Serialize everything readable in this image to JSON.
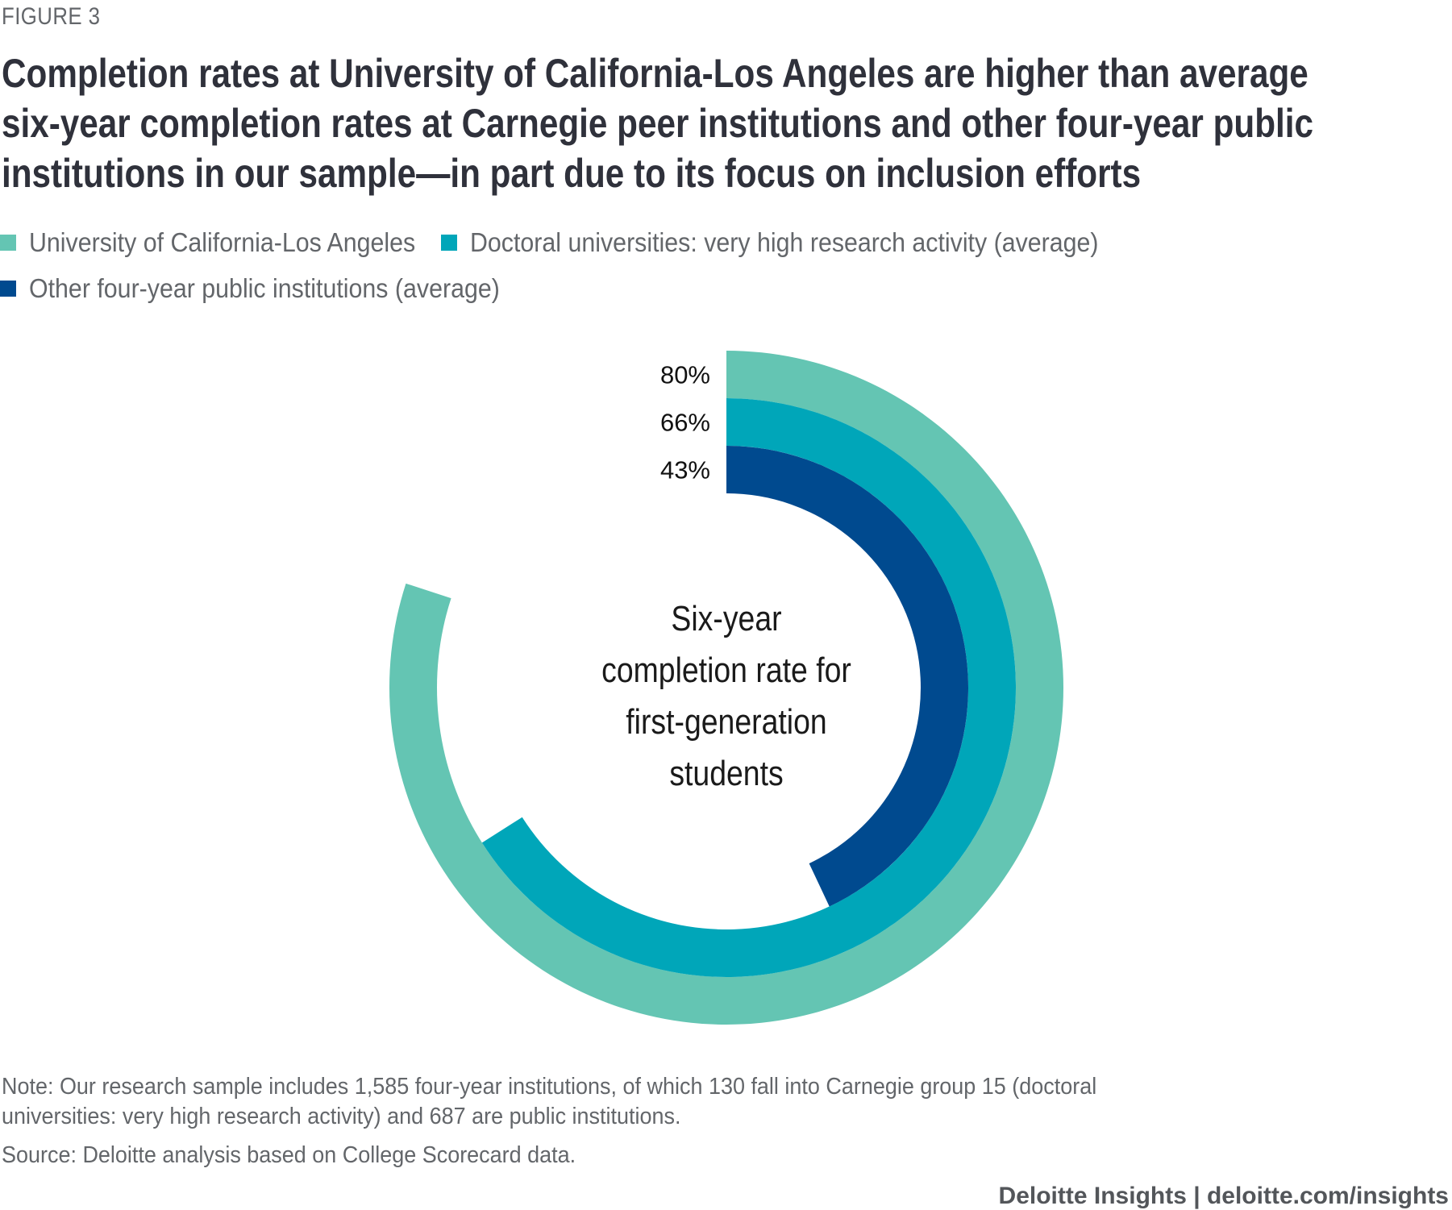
{
  "figure_label": "FIGURE 3",
  "title_lines": [
    "Completion rates at University of California-Los Angeles are higher than average",
    "six-year completion rates at Carnegie peer institutions and other four-year public",
    "institutions in our sample—in part due to its focus on inclusion efforts"
  ],
  "legend": [
    {
      "label": "University of California-Los Angeles",
      "color": "#64c5b3"
    },
    {
      "label": "Doctoral universities: very high research activity (average)",
      "color": "#00a6b9"
    },
    {
      "label": "Other four-year public institutions (average)",
      "color": "#004a8f"
    }
  ],
  "chart_data": {
    "type": "radial-bar",
    "title": "Completion rates at University of California-Los Angeles are higher than average six-year completion rates at Carnegie peer institutions and other four-year public institutions in our sample—in part due to its focus on inclusion efforts",
    "center_label": [
      "Six-year",
      "completion rate for",
      "first-generation",
      "students"
    ],
    "max_value": 100,
    "series": [
      {
        "name": "University of California-Los Angeles",
        "value": 80,
        "label": "80%",
        "color": "#64c5b3"
      },
      {
        "name": "Doctoral universities: very high research activity (average)",
        "value": 66,
        "label": "66%",
        "color": "#00a6b9"
      },
      {
        "name": "Other four-year public institutions (average)",
        "value": 43,
        "label": "43%",
        "color": "#004a8f"
      }
    ],
    "unit": "%"
  },
  "note": [
    "Note: Our research sample includes 1,585 four-year institutions, of which 130 fall into Carnegie group 15 (doctoral",
    "universities: very high research activity) and 687 are public institutions."
  ],
  "source": "Source: Deloitte analysis based on College Scorecard data.",
  "credit": "Deloitte Insights | deloitte.com/insights"
}
